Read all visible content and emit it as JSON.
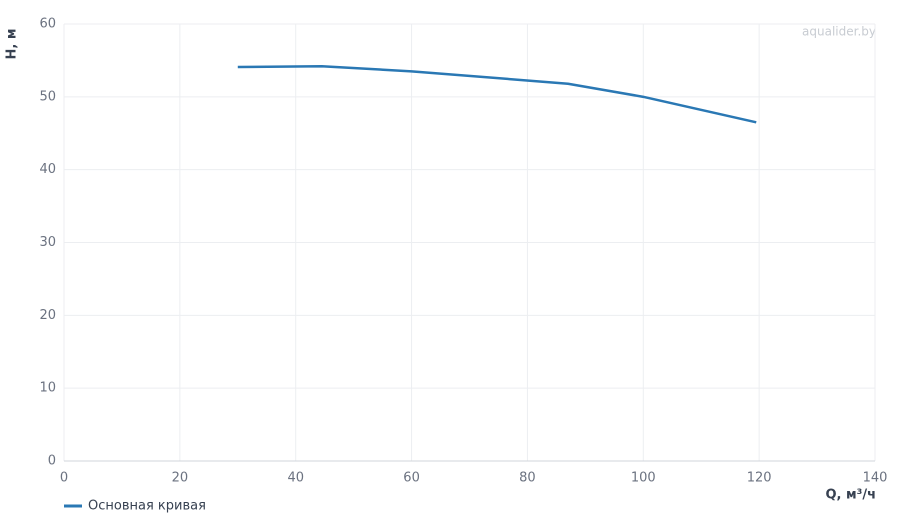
{
  "chart_data": {
    "type": "line",
    "x_label": "Q, м³/ч",
    "y_label": "H, м",
    "watermark": "aqualider.by",
    "series": [
      {
        "name": "Основная кривая",
        "color": "#2a78b4",
        "x": [
          30,
          44.5,
          60,
          87,
          100,
          119.5
        ],
        "values": [
          54.1,
          54.2,
          53.5,
          51.8,
          50.0,
          46.5
        ]
      }
    ],
    "xlim": [
      0,
      140
    ],
    "xticks": [
      0,
      20,
      40,
      60,
      80,
      100,
      120,
      140
    ],
    "ylim": [
      0,
      60
    ],
    "yticks": [
      0,
      10,
      20,
      30,
      40,
      50,
      60
    ],
    "grid": true,
    "legend": "bottom-left"
  }
}
